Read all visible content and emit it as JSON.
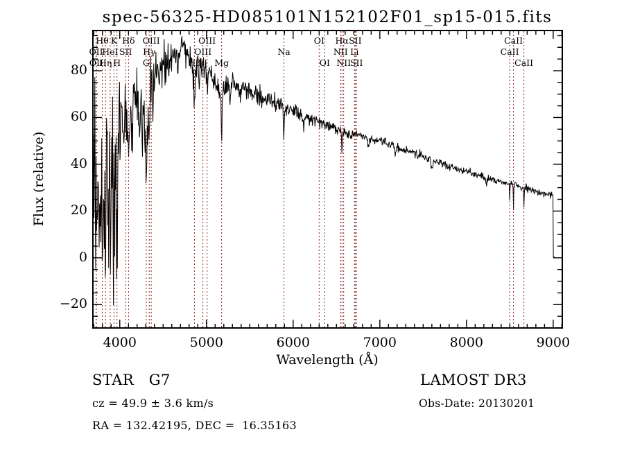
{
  "title": "spec-56325-HD085101N152102F01_sp15-015.fits",
  "chart_data": {
    "type": "line",
    "title": "spec-56325-HD085101N152102F01_sp15-015.fits",
    "xlabel": "Wavelength (Å)",
    "ylabel": "Flux (relative)",
    "xlim": [
      3690,
      9105
    ],
    "ylim": [
      -30,
      97.2
    ],
    "x_major_ticks": [
      4000,
      5000,
      6000,
      7000,
      8000,
      9000
    ],
    "x_minor_step": 100,
    "y_major_ticks": [
      -20,
      0,
      20,
      40,
      60,
      80
    ],
    "y_minor_step": 5,
    "grid": false,
    "legend": "none",
    "spectrum_color": "#000000",
    "marker_color": "#8b2222",
    "marker_label_color": "#000000",
    "spectral_lines": [
      {
        "label": "OII",
        "wavelength": 3726,
        "row": 1
      },
      {
        "label": "OII",
        "wavelength": 3729,
        "row": 2
      },
      {
        "label": "Hθ",
        "wavelength": 3798,
        "row": 0
      },
      {
        "label": "Hη",
        "wavelength": 3835,
        "row": 2
      },
      {
        "label": "HeI",
        "wavelength": 3889,
        "row": 1
      },
      {
        "label": "K",
        "wavelength": 3933,
        "row": 0
      },
      {
        "label": "H",
        "wavelength": 3968,
        "row": 2
      },
      {
        "label": "SII",
        "wavelength": 4068,
        "row": 1
      },
      {
        "label": "Hδ",
        "wavelength": 4101,
        "row": 0
      },
      {
        "label": "G",
        "wavelength": 4305,
        "row": 2
      },
      {
        "label": "Hγ",
        "wavelength": 4340,
        "row": 1
      },
      {
        "label": "OIII",
        "wavelength": 4363,
        "row": 0
      },
      {
        "label": "Hβ",
        "wavelength": 4861,
        "row": 2
      },
      {
        "label": "OIII",
        "wavelength": 4959,
        "row": 1
      },
      {
        "label": "OIII",
        "wavelength": 5007,
        "row": 0
      },
      {
        "label": "Mg",
        "wavelength": 5175,
        "row": 2
      },
      {
        "label": "Na",
        "wavelength": 5894,
        "row": 1
      },
      {
        "label": "OI",
        "wavelength": 6300,
        "row": 0
      },
      {
        "label": "OI",
        "wavelength": 6364,
        "row": 2
      },
      {
        "label": "NII",
        "wavelength": 6548,
        "row": 1
      },
      {
        "label": "Hα",
        "wavelength": 6563,
        "row": 0
      },
      {
        "label": "NII",
        "wavelength": 6583,
        "row": 2
      },
      {
        "label": "Li",
        "wavelength": 6708,
        "row": 1
      },
      {
        "label": "SII",
        "wavelength": 6716,
        "row": 0
      },
      {
        "label": "SII",
        "wavelength": 6731,
        "row": 2
      },
      {
        "label": "CaII",
        "wavelength": 8498,
        "row": 1
      },
      {
        "label": "CaII",
        "wavelength": 8542,
        "row": 0
      },
      {
        "label": "CaII",
        "wavelength": 8662,
        "row": 2
      }
    ],
    "spectrum_model": {
      "lambda_start": 3692,
      "lambda_end": 9020,
      "lambda_step": 5,
      "drop_to_zero_at": 9002,
      "zero_level": 0.4,
      "noise_seed": 20130201,
      "continuum_anchors": [
        [
          3692,
          45
        ],
        [
          3720,
          42
        ],
        [
          3780,
          44
        ],
        [
          3850,
          46
        ],
        [
          3920,
          42
        ],
        [
          3980,
          52
        ],
        [
          4000,
          60
        ],
        [
          4060,
          62
        ],
        [
          4120,
          66
        ],
        [
          4180,
          70
        ],
        [
          4240,
          70
        ],
        [
          4300,
          62
        ],
        [
          4360,
          74
        ],
        [
          4420,
          79
        ],
        [
          4480,
          83
        ],
        [
          4540,
          82
        ],
        [
          4600,
          87
        ],
        [
          4660,
          91
        ],
        [
          4720,
          90
        ],
        [
          4780,
          87
        ],
        [
          4840,
          82
        ],
        [
          4900,
          83
        ],
        [
          4960,
          82
        ],
        [
          5020,
          80
        ],
        [
          5090,
          77
        ],
        [
          5160,
          72
        ],
        [
          5240,
          75
        ],
        [
          5320,
          74
        ],
        [
          5420,
          72
        ],
        [
          5520,
          71
        ],
        [
          5620,
          69
        ],
        [
          5720,
          68
        ],
        [
          5820,
          66
        ],
        [
          5920,
          64
        ],
        [
          6020,
          62
        ],
        [
          6120,
          60
        ],
        [
          6220,
          59
        ],
        [
          6320,
          58
        ],
        [
          6420,
          56.5
        ],
        [
          6520,
          55
        ],
        [
          6620,
          53.5
        ],
        [
          6720,
          52.5
        ],
        [
          6820,
          51.5
        ],
        [
          6920,
          50.5
        ],
        [
          7020,
          50
        ],
        [
          7140,
          48
        ],
        [
          7260,
          46.5
        ],
        [
          7400,
          44.5
        ],
        [
          7550,
          42.5
        ],
        [
          7700,
          40.5
        ],
        [
          7850,
          38.5
        ],
        [
          8000,
          37
        ],
        [
          8150,
          35
        ],
        [
          8300,
          33.5
        ],
        [
          8450,
          32
        ],
        [
          8600,
          30.5
        ],
        [
          8750,
          29
        ],
        [
          8900,
          27.5
        ],
        [
          9000,
          26.5
        ]
      ],
      "noise_anchors": [
        [
          3692,
          38
        ],
        [
          3750,
          36
        ],
        [
          3800,
          34
        ],
        [
          3850,
          34
        ],
        [
          3900,
          32
        ],
        [
          3950,
          28
        ],
        [
          4000,
          20
        ],
        [
          4060,
          17
        ],
        [
          4130,
          15
        ],
        [
          4200,
          13
        ],
        [
          4300,
          13
        ],
        [
          4400,
          10
        ],
        [
          4500,
          8.5
        ],
        [
          4600,
          7.5
        ],
        [
          4700,
          7
        ],
        [
          4800,
          6.5
        ],
        [
          4950,
          5.5
        ],
        [
          5100,
          5
        ],
        [
          5300,
          4.5
        ],
        [
          5500,
          4
        ],
        [
          5700,
          3.6
        ],
        [
          5900,
          3.2
        ],
        [
          6100,
          2.8
        ],
        [
          6400,
          2.4
        ],
        [
          6700,
          2.2
        ],
        [
          7000,
          2
        ],
        [
          7400,
          1.8
        ],
        [
          7900,
          1.6
        ],
        [
          8400,
          1.5
        ],
        [
          9000,
          1.3
        ]
      ],
      "absorption_features": [
        [
          3727,
          30,
          7
        ],
        [
          3760,
          26,
          9
        ],
        [
          3798,
          34,
          7
        ],
        [
          3820,
          20,
          6
        ],
        [
          3835,
          36,
          7
        ],
        [
          3870,
          22,
          6
        ],
        [
          3889,
          28,
          7
        ],
        [
          3933,
          46,
          9
        ],
        [
          3968,
          40,
          9
        ],
        [
          4045,
          14,
          8
        ],
        [
          4101,
          22,
          9
        ],
        [
          4144,
          12,
          7
        ],
        [
          4226,
          24,
          6
        ],
        [
          4260,
          12,
          6
        ],
        [
          4305,
          25,
          10
        ],
        [
          4340,
          14,
          7
        ],
        [
          4383,
          14,
          6
        ],
        [
          4455,
          10,
          5
        ],
        [
          4531,
          8,
          5
        ],
        [
          4668,
          8,
          5
        ],
        [
          4861,
          13,
          7
        ],
        [
          4920,
          6,
          5
        ],
        [
          5015,
          6,
          5
        ],
        [
          5110,
          7,
          5
        ],
        [
          5175,
          18,
          6
        ],
        [
          5270,
          8,
          6
        ],
        [
          5893,
          16,
          5
        ],
        [
          6122,
          4,
          4
        ],
        [
          6563,
          9,
          5
        ],
        [
          6870,
          4,
          6
        ],
        [
          7180,
          3,
          6
        ],
        [
          7600,
          4,
          8
        ],
        [
          8230,
          3,
          6
        ],
        [
          8498,
          7,
          3
        ],
        [
          8542,
          10,
          3
        ],
        [
          8662,
          9,
          3
        ]
      ]
    }
  },
  "annotations": {
    "class_label": "STAR   G7",
    "survey": "LAMOST DR3",
    "cz": "cz = 49.9 ± 3.6 km/s",
    "obs_date": "Obs-Date: 20130201",
    "ra_dec": "RA = 132.42195, DEC =  16.35163"
  }
}
